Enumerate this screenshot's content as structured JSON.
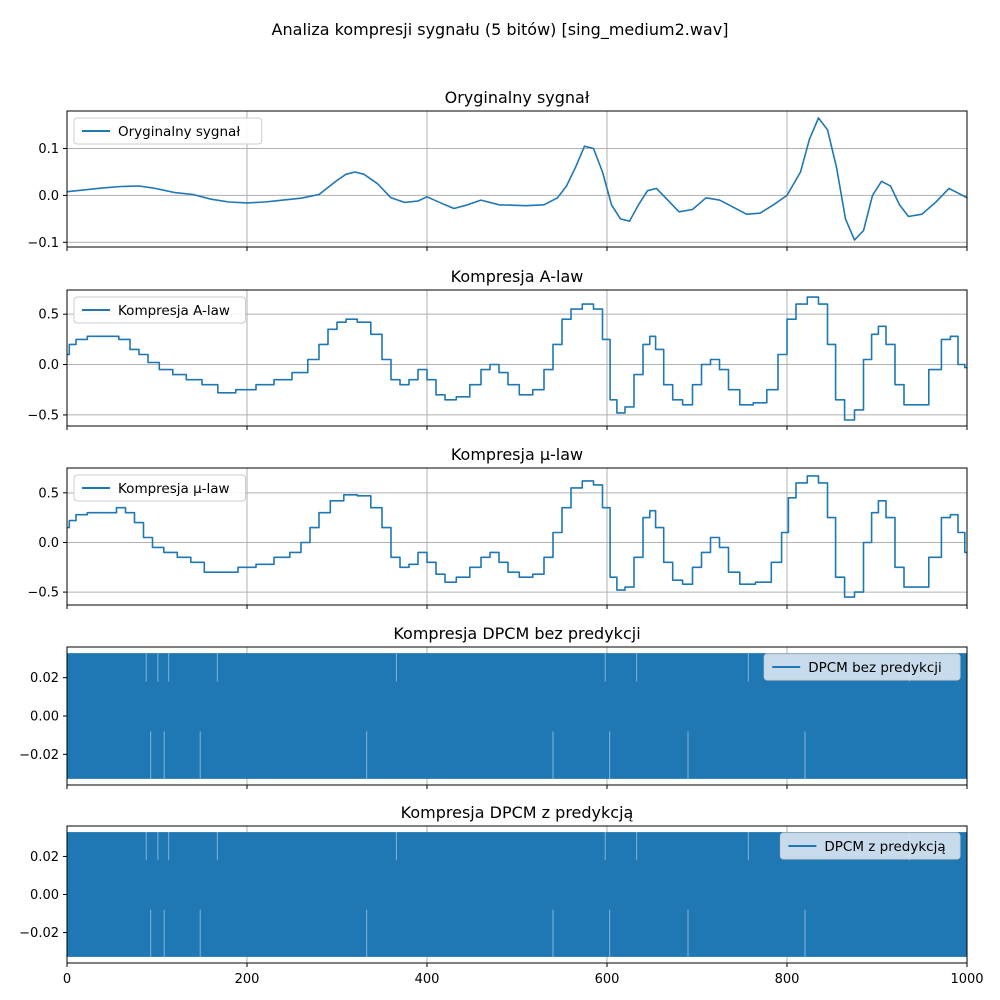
{
  "figure": {
    "suptitle": "Analiza kompresji sygnału (5 bitów) [sing_medium2.wav]",
    "line_color": "#1f77b4"
  },
  "chart_data": [
    {
      "type": "line",
      "title": "Oryginalny sygnał",
      "legend": "Oryginalny sygnał",
      "legend_loc": "upper-left",
      "xlim": [
        0,
        1000
      ],
      "ylim": [
        -0.11,
        0.18
      ],
      "yticks": [
        -0.1,
        0.0,
        0.1
      ],
      "ytick_labels": [
        "−0.1",
        "0.0",
        "0.1"
      ],
      "x_tick_labels_visible": false,
      "points": [
        [
          0,
          0.008
        ],
        [
          20,
          0.012
        ],
        [
          40,
          0.016
        ],
        [
          60,
          0.019
        ],
        [
          80,
          0.02
        ],
        [
          95,
          0.016
        ],
        [
          110,
          0.01
        ],
        [
          120,
          0.006
        ],
        [
          140,
          0.002
        ],
        [
          160,
          -0.008
        ],
        [
          180,
          -0.014
        ],
        [
          200,
          -0.016
        ],
        [
          220,
          -0.014
        ],
        [
          240,
          -0.01
        ],
        [
          260,
          -0.006
        ],
        [
          280,
          0.002
        ],
        [
          300,
          0.032
        ],
        [
          310,
          0.045
        ],
        [
          320,
          0.05
        ],
        [
          330,
          0.045
        ],
        [
          345,
          0.025
        ],
        [
          360,
          -0.005
        ],
        [
          375,
          -0.015
        ],
        [
          390,
          -0.012
        ],
        [
          400,
          -0.003
        ],
        [
          420,
          -0.02
        ],
        [
          430,
          -0.028
        ],
        [
          445,
          -0.02
        ],
        [
          460,
          -0.01
        ],
        [
          480,
          -0.02
        ],
        [
          510,
          -0.022
        ],
        [
          530,
          -0.02
        ],
        [
          545,
          -0.005
        ],
        [
          555,
          0.02
        ],
        [
          565,
          0.06
        ],
        [
          575,
          0.105
        ],
        [
          585,
          0.1
        ],
        [
          595,
          0.05
        ],
        [
          605,
          -0.02
        ],
        [
          615,
          -0.05
        ],
        [
          625,
          -0.055
        ],
        [
          635,
          -0.02
        ],
        [
          645,
          0.01
        ],
        [
          655,
          0.015
        ],
        [
          670,
          -0.015
        ],
        [
          680,
          -0.035
        ],
        [
          695,
          -0.03
        ],
        [
          710,
          -0.005
        ],
        [
          725,
          -0.01
        ],
        [
          740,
          -0.025
        ],
        [
          755,
          -0.04
        ],
        [
          770,
          -0.038
        ],
        [
          785,
          -0.02
        ],
        [
          800,
          0.0
        ],
        [
          815,
          0.05
        ],
        [
          825,
          0.12
        ],
        [
          835,
          0.165
        ],
        [
          845,
          0.14
        ],
        [
          855,
          0.06
        ],
        [
          865,
          -0.05
        ],
        [
          875,
          -0.095
        ],
        [
          885,
          -0.075
        ],
        [
          895,
          0.0
        ],
        [
          905,
          0.03
        ],
        [
          915,
          0.02
        ],
        [
          925,
          -0.02
        ],
        [
          935,
          -0.045
        ],
        [
          950,
          -0.04
        ],
        [
          965,
          -0.015
        ],
        [
          980,
          0.015
        ],
        [
          990,
          0.005
        ],
        [
          1000,
          -0.005
        ]
      ]
    },
    {
      "type": "line",
      "title": "Kompresja A-law",
      "legend": "Kompresja A-law",
      "legend_loc": "upper-left",
      "xlim": [
        0,
        1000
      ],
      "ylim": [
        -0.61,
        0.74
      ],
      "yticks": [
        -0.5,
        0.0,
        0.5
      ],
      "ytick_labels": [
        "−0.5",
        "0.0",
        "0.5"
      ],
      "x_tick_labels_visible": false,
      "step": true,
      "points": [
        [
          0,
          0.1
        ],
        [
          5,
          0.2
        ],
        [
          15,
          0.25
        ],
        [
          30,
          0.28
        ],
        [
          50,
          0.28
        ],
        [
          65,
          0.25
        ],
        [
          75,
          0.15
        ],
        [
          85,
          0.1
        ],
        [
          95,
          0.02
        ],
        [
          110,
          -0.05
        ],
        [
          125,
          -0.1
        ],
        [
          140,
          -0.15
        ],
        [
          160,
          -0.2
        ],
        [
          175,
          -0.28
        ],
        [
          200,
          -0.25
        ],
        [
          220,
          -0.2
        ],
        [
          240,
          -0.15
        ],
        [
          260,
          -0.08
        ],
        [
          275,
          0.05
        ],
        [
          285,
          0.2
        ],
        [
          295,
          0.35
        ],
        [
          305,
          0.42
        ],
        [
          315,
          0.45
        ],
        [
          330,
          0.42
        ],
        [
          345,
          0.3
        ],
        [
          355,
          0.05
        ],
        [
          365,
          -0.15
        ],
        [
          375,
          -0.2
        ],
        [
          385,
          -0.15
        ],
        [
          395,
          -0.05
        ],
        [
          405,
          -0.15
        ],
        [
          415,
          -0.3
        ],
        [
          425,
          -0.35
        ],
        [
          440,
          -0.32
        ],
        [
          455,
          -0.2
        ],
        [
          465,
          -0.05
        ],
        [
          475,
          0.0
        ],
        [
          485,
          -0.08
        ],
        [
          495,
          -0.2
        ],
        [
          510,
          -0.3
        ],
        [
          525,
          -0.25
        ],
        [
          535,
          -0.05
        ],
        [
          545,
          0.2
        ],
        [
          555,
          0.45
        ],
        [
          565,
          0.55
        ],
        [
          580,
          0.6
        ],
        [
          590,
          0.55
        ],
        [
          600,
          0.25
        ],
        [
          607,
          -0.35
        ],
        [
          615,
          -0.48
        ],
        [
          625,
          -0.42
        ],
        [
          635,
          -0.1
        ],
        [
          645,
          0.2
        ],
        [
          650,
          0.28
        ],
        [
          658,
          0.15
        ],
        [
          668,
          -0.2
        ],
        [
          678,
          -0.35
        ],
        [
          690,
          -0.4
        ],
        [
          700,
          -0.2
        ],
        [
          710,
          0.0
        ],
        [
          720,
          0.05
        ],
        [
          730,
          -0.05
        ],
        [
          740,
          -0.25
        ],
        [
          755,
          -0.4
        ],
        [
          770,
          -0.38
        ],
        [
          785,
          -0.25
        ],
        [
          795,
          0.1
        ],
        [
          805,
          0.45
        ],
        [
          815,
          0.6
        ],
        [
          830,
          0.67
        ],
        [
          840,
          0.6
        ],
        [
          850,
          0.2
        ],
        [
          858,
          -0.35
        ],
        [
          870,
          -0.55
        ],
        [
          880,
          -0.45
        ],
        [
          890,
          0.05
        ],
        [
          898,
          0.3
        ],
        [
          905,
          0.38
        ],
        [
          915,
          0.2
        ],
        [
          925,
          -0.2
        ],
        [
          935,
          -0.4
        ],
        [
          950,
          -0.4
        ],
        [
          965,
          -0.05
        ],
        [
          978,
          0.25
        ],
        [
          985,
          0.28
        ],
        [
          995,
          0.0
        ],
        [
          1000,
          -0.03
        ]
      ]
    },
    {
      "type": "line",
      "title": "Kompresja μ-law",
      "legend": "Kompresja μ-law",
      "legend_loc": "upper-left",
      "xlim": [
        0,
        1000
      ],
      "ylim": [
        -0.63,
        0.75
      ],
      "yticks": [
        -0.5,
        0.0,
        0.5
      ],
      "ytick_labels": [
        "−0.5",
        "0.0",
        "0.5"
      ],
      "x_tick_labels_visible": false,
      "step": true,
      "points": [
        [
          0,
          0.15
        ],
        [
          5,
          0.22
        ],
        [
          15,
          0.28
        ],
        [
          30,
          0.3
        ],
        [
          50,
          0.3
        ],
        [
          60,
          0.35
        ],
        [
          70,
          0.3
        ],
        [
          80,
          0.2
        ],
        [
          90,
          0.05
        ],
        [
          100,
          -0.05
        ],
        [
          115,
          -0.1
        ],
        [
          130,
          -0.15
        ],
        [
          145,
          -0.2
        ],
        [
          160,
          -0.3
        ],
        [
          180,
          -0.3
        ],
        [
          200,
          -0.25
        ],
        [
          220,
          -0.22
        ],
        [
          240,
          -0.15
        ],
        [
          255,
          -0.1
        ],
        [
          265,
          0.0
        ],
        [
          275,
          0.15
        ],
        [
          285,
          0.3
        ],
        [
          300,
          0.42
        ],
        [
          315,
          0.48
        ],
        [
          330,
          0.47
        ],
        [
          345,
          0.35
        ],
        [
          355,
          0.15
        ],
        [
          365,
          -0.15
        ],
        [
          375,
          -0.25
        ],
        [
          385,
          -0.22
        ],
        [
          395,
          -0.1
        ],
        [
          405,
          -0.2
        ],
        [
          415,
          -0.32
        ],
        [
          425,
          -0.4
        ],
        [
          440,
          -0.35
        ],
        [
          455,
          -0.25
        ],
        [
          465,
          -0.15
        ],
        [
          475,
          -0.1
        ],
        [
          485,
          -0.2
        ],
        [
          495,
          -0.3
        ],
        [
          510,
          -0.35
        ],
        [
          525,
          -0.32
        ],
        [
          535,
          -0.15
        ],
        [
          545,
          0.1
        ],
        [
          555,
          0.35
        ],
        [
          565,
          0.55
        ],
        [
          580,
          0.62
        ],
        [
          590,
          0.58
        ],
        [
          600,
          0.35
        ],
        [
          607,
          -0.35
        ],
        [
          615,
          -0.48
        ],
        [
          625,
          -0.45
        ],
        [
          635,
          -0.15
        ],
        [
          645,
          0.25
        ],
        [
          650,
          0.32
        ],
        [
          658,
          0.15
        ],
        [
          668,
          -0.2
        ],
        [
          678,
          -0.38
        ],
        [
          690,
          -0.42
        ],
        [
          700,
          -0.25
        ],
        [
          710,
          -0.1
        ],
        [
          720,
          0.05
        ],
        [
          730,
          -0.05
        ],
        [
          740,
          -0.3
        ],
        [
          755,
          -0.42
        ],
        [
          775,
          -0.4
        ],
        [
          790,
          -0.2
        ],
        [
          798,
          0.1
        ],
        [
          805,
          0.45
        ],
        [
          815,
          0.6
        ],
        [
          830,
          0.67
        ],
        [
          840,
          0.6
        ],
        [
          850,
          0.25
        ],
        [
          858,
          -0.35
        ],
        [
          870,
          -0.55
        ],
        [
          880,
          -0.5
        ],
        [
          890,
          0.0
        ],
        [
          898,
          0.3
        ],
        [
          905,
          0.42
        ],
        [
          915,
          0.25
        ],
        [
          925,
          -0.25
        ],
        [
          935,
          -0.45
        ],
        [
          950,
          -0.45
        ],
        [
          965,
          -0.15
        ],
        [
          978,
          0.25
        ],
        [
          985,
          0.28
        ],
        [
          995,
          0.1
        ],
        [
          1000,
          -0.1
        ]
      ]
    },
    {
      "type": "line",
      "title": "Kompresja DPCM bez predykcji",
      "legend": "DPCM bez predykcji",
      "legend_loc": "upper-right",
      "xlim": [
        0,
        1000
      ],
      "ylim": [
        -0.036,
        0.036
      ],
      "yticks": [
        -0.02,
        0.0,
        0.02
      ],
      "ytick_labels": [
        "−0.02",
        "0.00",
        "0.02"
      ],
      "x_tick_labels_visible": false,
      "oscillation_amplitude": 0.0328
    },
    {
      "type": "line",
      "title": "Kompresja DPCM z predykcją",
      "legend": "DPCM z predykcją",
      "legend_loc": "upper-right",
      "xlim": [
        0,
        1000
      ],
      "ylim": [
        -0.036,
        0.036
      ],
      "yticks": [
        -0.02,
        0.0,
        0.02
      ],
      "ytick_labels": [
        "−0.02",
        "0.00",
        "0.02"
      ],
      "x_tick_labels_visible": true,
      "xticks": [
        0,
        200,
        400,
        600,
        800,
        1000
      ],
      "xtick_labels": [
        "0",
        "200",
        "400",
        "600",
        "800",
        "1000"
      ],
      "oscillation_amplitude": 0.0328
    }
  ]
}
